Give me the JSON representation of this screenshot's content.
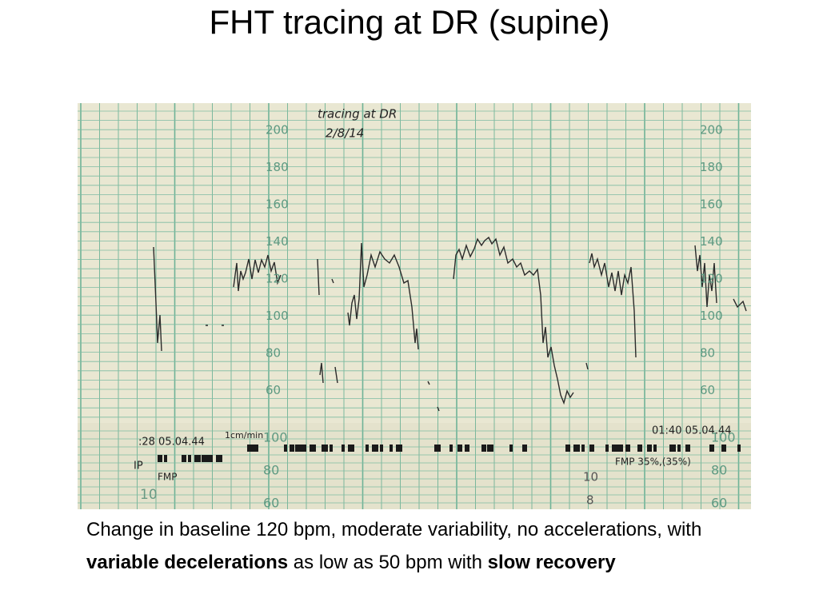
{
  "title": "FHT tracing at DR (supine)",
  "photo": {
    "handwriting": [
      "tracing at DR",
      "2/8/14"
    ],
    "scale_labels": [
      200,
      180,
      160,
      140,
      120,
      100,
      80,
      60
    ],
    "strip_left": ":28 05.04.44",
    "paper_speed": "1cm/min",
    "strip_right": "01:40 05.04.44",
    "uc_labels": [
      100,
      80,
      60
    ],
    "ip": "IP",
    "fmp": "FMP",
    "fmp_right": "FMP 35%,(35%)",
    "uc_small": [
      "10",
      "10",
      "8"
    ]
  },
  "caption": [
    {
      "text": "Change in baseline 120 bpm, moderate variability, no accelerations, with ",
      "bold": false
    },
    {
      "text": "variable decelerations",
      "bold": true
    },
    {
      "text": " as low as 50 bpm with ",
      "bold": false
    },
    {
      "text": "slow recovery",
      "bold": true
    }
  ]
}
